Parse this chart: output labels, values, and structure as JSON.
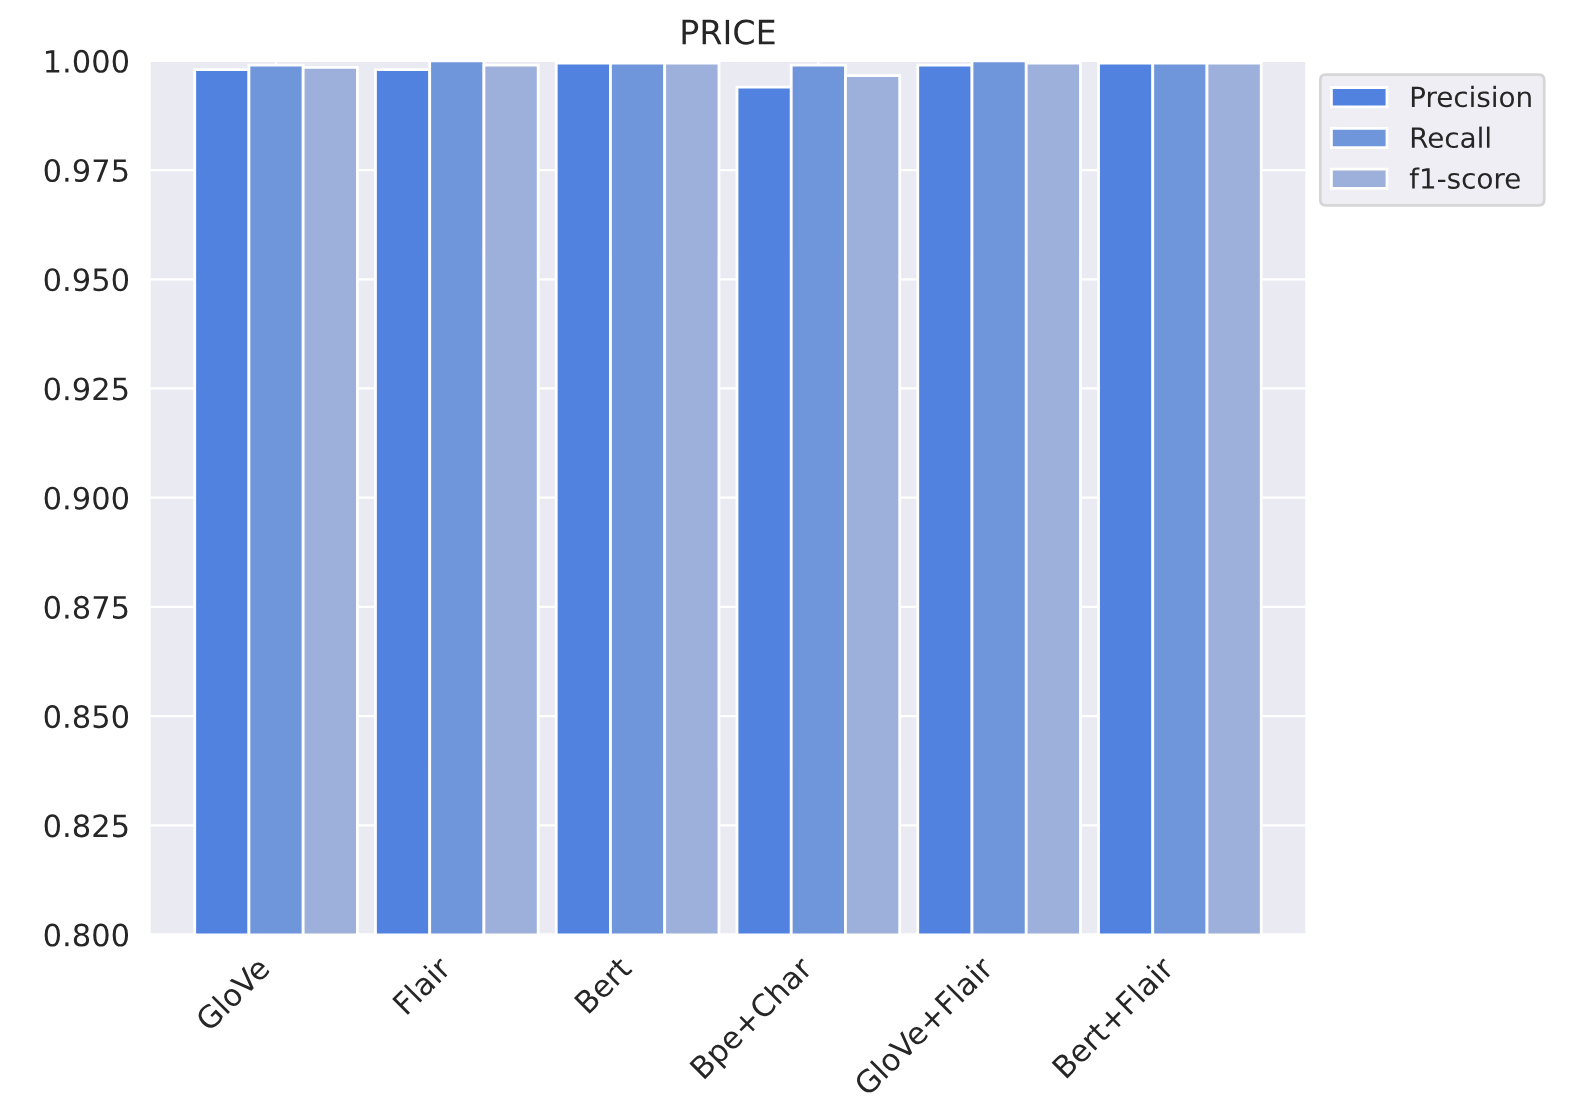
{
  "chart_data": {
    "type": "bar",
    "title": "PRICE",
    "categories": [
      "GloVe",
      "Flair",
      "Bert",
      "Bpe+Char",
      "GloVe+Flair",
      "Bert+Flair"
    ],
    "series": [
      {
        "name": "Precision",
        "color": "#5282e0",
        "values": [
          0.998,
          0.998,
          0.9995,
          0.994,
          0.999,
          0.9995
        ]
      },
      {
        "name": "Recall",
        "color": "#6f95db",
        "values": [
          0.999,
          1.0,
          0.9995,
          0.999,
          1.0,
          0.9995
        ]
      },
      {
        "name": "f1-score",
        "color": "#9cb0db",
        "values": [
          0.9985,
          0.999,
          0.9995,
          0.9966,
          0.9995,
          0.9995
        ]
      }
    ],
    "ylim": [
      0.8,
      1.0
    ],
    "yticks": [
      {
        "value": 0.8,
        "label": "0.800"
      },
      {
        "value": 0.825,
        "label": "0.825"
      },
      {
        "value": 0.85,
        "label": "0.850"
      },
      {
        "value": 0.875,
        "label": "0.875"
      },
      {
        "value": 0.9,
        "label": "0.900"
      },
      {
        "value": 0.925,
        "label": "0.925"
      },
      {
        "value": 0.95,
        "label": "0.950"
      },
      {
        "value": 0.975,
        "label": "0.975"
      },
      {
        "value": 1.0,
        "label": "1.000"
      }
    ],
    "grid": true,
    "legend": "top right"
  }
}
